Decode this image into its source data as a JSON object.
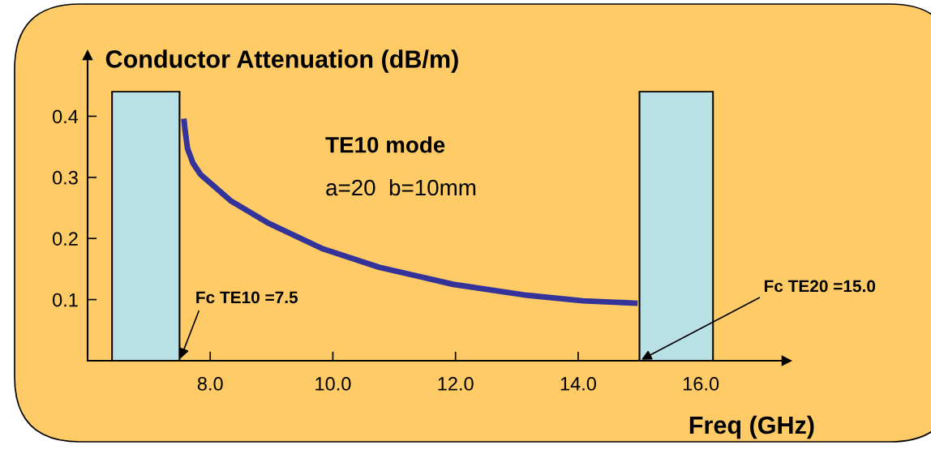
{
  "chart_data": {
    "type": "line",
    "ylabel": "Conductor Attenuation (dB/m)",
    "xlabel": "Freq (GHz)",
    "xlim": [
      6.0,
      17.4
    ],
    "ylim": [
      0,
      0.5
    ],
    "xticks": [
      {
        "value": 8,
        "label": "8.0"
      },
      {
        "value": 10,
        "label": "10.0"
      },
      {
        "value": 12,
        "label": "12.0"
      },
      {
        "value": 14,
        "label": "14.0"
      },
      {
        "value": 16,
        "label": "16.0"
      }
    ],
    "yticks": [
      0.1,
      0.2,
      0.3,
      0.4
    ],
    "grid": false,
    "legend": false,
    "series": [
      {
        "type": "area",
        "color": "#b9e0e4",
        "x": [
          6.4,
          7.5
        ],
        "values": [
          0.44,
          0.44
        ]
      },
      {
        "type": "area",
        "color": "#b9e0e4",
        "x": [
          15.0,
          16.2
        ],
        "values": [
          0.44,
          0.44
        ]
      },
      {
        "color": "#333399",
        "x": [
          7.57,
          7.59,
          7.63,
          7.72,
          7.84,
          8.33,
          8.93,
          9.84,
          10.75,
          11.96,
          13.17,
          14.08,
          14.97
        ],
        "values": [
          0.396,
          0.377,
          0.347,
          0.323,
          0.305,
          0.262,
          0.226,
          0.183,
          0.153,
          0.125,
          0.107,
          0.098,
          0.094
        ]
      }
    ],
    "annotations": [
      "TE10 mode",
      "a=20  b=10mm",
      {
        "text": "Fc TE10 =7.5",
        "x": 7.5,
        "y": 0
      },
      {
        "text": "Fc TE20 =15.0",
        "x": 15.0,
        "y": 0
      }
    ]
  }
}
